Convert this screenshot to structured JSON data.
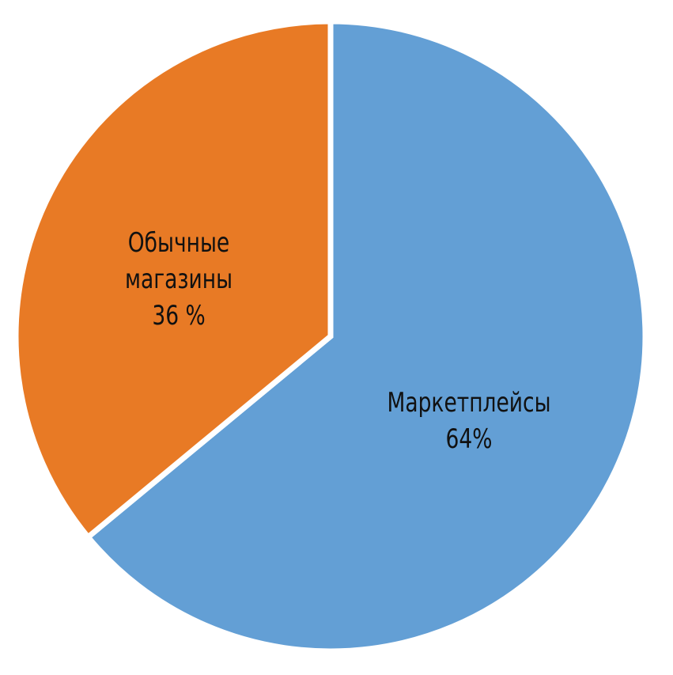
{
  "chart_data": {
    "type": "pie",
    "start_angle": "12 o'clock",
    "direction": "clockwise",
    "slices": [
      {
        "label_lines": [
          "Маркетплейсы",
          "64%"
        ],
        "name": "Маркетплейсы",
        "value": 64,
        "color": "#639fd5"
      },
      {
        "label_lines": [
          "Обычные",
          "магазины",
          "36  %"
        ],
        "name": "Обычные магазины",
        "value": 36,
        "color": "#e87a25"
      }
    ],
    "separator_color": "#ffffff",
    "legend": "none"
  }
}
